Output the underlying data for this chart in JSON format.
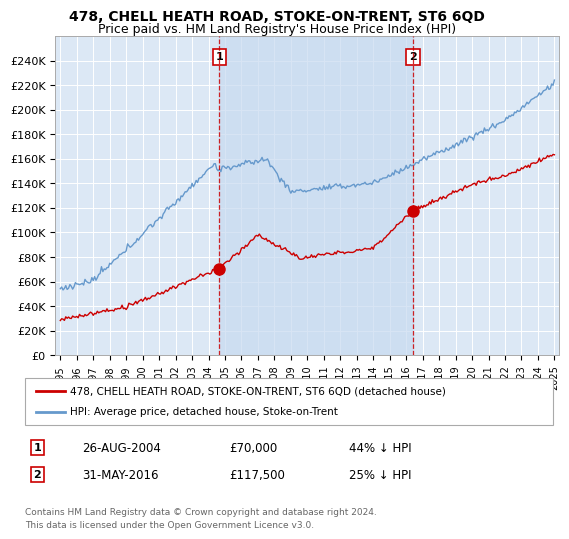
{
  "title": "478, CHELL HEATH ROAD, STOKE-ON-TRENT, ST6 6QD",
  "subtitle": "Price paid vs. HM Land Registry's House Price Index (HPI)",
  "ylim": [
    0,
    260000
  ],
  "yticks": [
    0,
    20000,
    40000,
    60000,
    80000,
    100000,
    120000,
    140000,
    160000,
    180000,
    200000,
    220000,
    240000
  ],
  "ytick_labels": [
    "£0",
    "£20K",
    "£40K",
    "£60K",
    "£80K",
    "£100K",
    "£120K",
    "£140K",
    "£160K",
    "£180K",
    "£200K",
    "£220K",
    "£240K"
  ],
  "sale1_date_num": 2004.65,
  "sale1_price": 70000,
  "sale1_label": "1",
  "sale1_date_str": "26-AUG-2004",
  "sale1_amount_str": "£70,000",
  "sale1_pct_str": "44% ↓ HPI",
  "sale2_date_num": 2016.42,
  "sale2_price": 117500,
  "sale2_label": "2",
  "sale2_date_str": "31-MAY-2016",
  "sale2_amount_str": "£117,500",
  "sale2_pct_str": "25% ↓ HPI",
  "plot_bg_color": "#dce8f5",
  "shade_color": "#c8daf0",
  "red_line_color": "#cc0000",
  "blue_line_color": "#6699cc",
  "legend_label1": "478, CHELL HEATH ROAD, STOKE-ON-TRENT, ST6 6QD (detached house)",
  "legend_label2": "HPI: Average price, detached house, Stoke-on-Trent",
  "footnote": "Contains HM Land Registry data © Crown copyright and database right 2024.\nThis data is licensed under the Open Government Licence v3.0."
}
